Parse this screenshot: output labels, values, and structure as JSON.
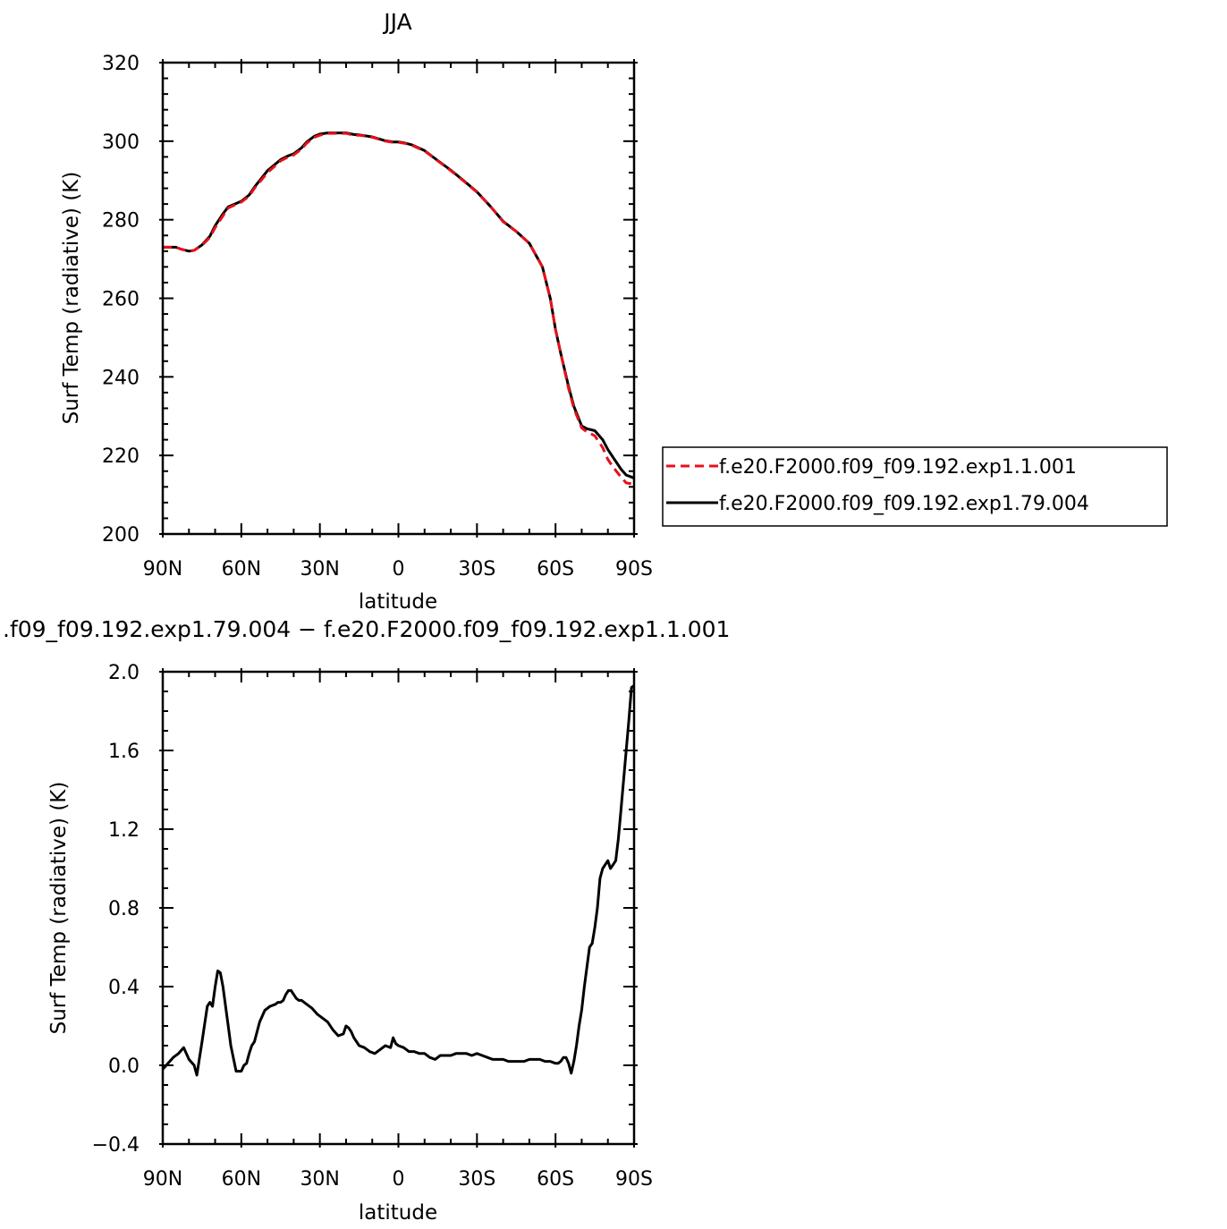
{
  "chart_data": [
    {
      "type": "line",
      "title": "JJA",
      "xlabel": "latitude",
      "ylabel": "Surf Temp (radiative) (K)",
      "xlim": [
        90,
        -90
      ],
      "ylim": [
        200,
        320
      ],
      "xticks": [
        90,
        60,
        30,
        0,
        -30,
        -60,
        -90
      ],
      "xtick_labels": [
        "90N",
        "60N",
        "30N",
        "0",
        "30S",
        "60S",
        "90S"
      ],
      "yticks": [
        200,
        220,
        240,
        260,
        280,
        300,
        320
      ],
      "ytick_labels": [
        "200",
        "220",
        "240",
        "260",
        "280",
        "300",
        "320"
      ],
      "grid": false,
      "legend_position": "right",
      "series": [
        {
          "name": "f.e20.F2000.f09_f09.192.exp1.1.001",
          "color": "#e8101a",
          "dash": "dashed",
          "x": [
            90,
            85,
            83,
            80,
            78,
            75,
            72,
            70,
            67,
            65,
            60,
            57,
            55,
            50,
            45,
            42,
            40,
            37,
            35,
            32,
            30,
            27,
            25,
            22,
            20,
            17,
            15,
            10,
            5,
            2,
            0,
            -2,
            -5,
            -10,
            -15,
            -20,
            -25,
            -30,
            -35,
            -40,
            -45,
            -50,
            -55,
            -58,
            -60,
            -62,
            -65,
            -67,
            -70,
            -72,
            -75,
            -78,
            -80,
            -82,
            -85,
            -87,
            -89,
            -90
          ],
          "y": [
            273,
            273,
            272.5,
            272,
            272.2,
            273.5,
            275.5,
            278,
            281,
            283,
            284.5,
            286,
            288,
            292,
            295,
            296,
            296.5,
            298,
            299.5,
            301,
            301.5,
            302,
            302,
            302,
            302,
            301.5,
            301.5,
            301,
            300,
            299.7,
            299.7,
            299.5,
            299,
            297.5,
            295,
            292.5,
            289.8,
            287,
            283.5,
            279.5,
            277,
            274,
            268,
            260,
            252,
            246,
            237,
            232,
            227,
            226,
            225,
            222,
            219,
            217,
            214.5,
            213,
            212.8,
            212.5
          ]
        },
        {
          "name": "f.e20.F2000.f09_f09.192.exp1.79.004",
          "color": "#000000",
          "dash": "solid",
          "x": [
            90,
            85,
            83,
            80,
            78,
            75,
            72,
            70,
            67,
            65,
            60,
            57,
            55,
            50,
            45,
            42,
            40,
            37,
            35,
            32,
            30,
            27,
            25,
            22,
            20,
            17,
            15,
            10,
            5,
            2,
            0,
            -2,
            -5,
            -10,
            -15,
            -20,
            -25,
            -30,
            -35,
            -40,
            -45,
            -50,
            -55,
            -58,
            -60,
            -62,
            -65,
            -67,
            -70,
            -72,
            -75,
            -78,
            -80,
            -82,
            -85,
            -87,
            -89,
            -90
          ],
          "y": [
            273,
            273,
            272.5,
            272,
            272.2,
            273.6,
            275.8,
            278.5,
            281.5,
            283.3,
            284.7,
            286.3,
            288.3,
            292.5,
            295.3,
            296.3,
            296.8,
            298.3,
            299.8,
            301.3,
            301.8,
            302.1,
            302.1,
            302.1,
            302.1,
            301.7,
            301.6,
            301.1,
            300.1,
            299.8,
            299.8,
            299.6,
            299.1,
            297.6,
            295.1,
            292.6,
            289.9,
            287.1,
            283.5,
            279.6,
            277,
            274,
            268,
            260,
            252,
            246,
            237.5,
            232.5,
            227.5,
            226.8,
            226.3,
            224,
            221.5,
            219.5,
            216.5,
            215,
            214.5,
            214.2
          ]
        }
      ]
    },
    {
      "type": "line",
      "title": ".f09_f09.192.exp1.79.004 − f.e20.F2000.f09_f09.192.exp1.1.001",
      "xlabel": "latitude",
      "ylabel": "Surf Temp (radiative) (K)",
      "xlim": [
        90,
        -90
      ],
      "ylim": [
        -0.4,
        2.0
      ],
      "xticks": [
        90,
        60,
        30,
        0,
        -30,
        -60,
        -90
      ],
      "xtick_labels": [
        "90N",
        "60N",
        "30N",
        "0",
        "30S",
        "60S",
        "90S"
      ],
      "yticks": [
        -0.4,
        0.0,
        0.4,
        0.8,
        1.2,
        1.6,
        2.0
      ],
      "ytick_labels": [
        "−0.4",
        "0.0",
        "0.4",
        "0.8",
        "1.2",
        "1.6",
        "2.0"
      ],
      "grid": false,
      "series": [
        {
          "color": "#000000",
          "dash": "solid",
          "x": [
            90,
            88,
            86,
            84,
            82,
            80,
            78,
            77,
            75,
            73,
            72,
            71,
            70,
            69,
            68,
            67,
            65,
            64,
            62,
            60,
            59,
            58,
            57,
            56,
            55,
            53,
            51,
            49,
            47,
            46,
            45,
            44,
            43,
            42,
            41,
            40,
            39,
            38,
            37,
            35,
            33,
            31,
            29,
            27,
            25,
            23,
            21,
            20,
            19,
            18,
            17,
            16,
            15,
            13,
            11,
            9,
            7,
            5,
            3,
            2,
            1,
            0,
            -2,
            -4,
            -6,
            -8,
            -10,
            -12,
            -14,
            -16,
            -18,
            -20,
            -22,
            -24,
            -26,
            -28,
            -30,
            -32,
            -34,
            -36,
            -38,
            -40,
            -42,
            -44,
            -46,
            -48,
            -50,
            -52,
            -54,
            -56,
            -58,
            -60,
            -61,
            -62,
            -63,
            -64,
            -65,
            -66,
            -67,
            -68,
            -69,
            -70,
            -71,
            -72,
            -73,
            -74,
            -75,
            -76,
            -77,
            -78,
            -79,
            -80,
            -81,
            -82,
            -83,
            -84,
            -85,
            -86,
            -87,
            -88,
            -89,
            -90
          ],
          "y": [
            -0.02,
            0.01,
            0.04,
            0.06,
            0.09,
            0.03,
            0.0,
            -0.05,
            0.12,
            0.3,
            0.32,
            0.3,
            0.4,
            0.48,
            0.47,
            0.4,
            0.2,
            0.1,
            -0.03,
            -0.03,
            0.0,
            0.01,
            0.06,
            0.1,
            0.12,
            0.22,
            0.28,
            0.3,
            0.31,
            0.32,
            0.32,
            0.33,
            0.36,
            0.38,
            0.38,
            0.36,
            0.34,
            0.33,
            0.33,
            0.31,
            0.29,
            0.26,
            0.24,
            0.22,
            0.18,
            0.15,
            0.16,
            0.2,
            0.19,
            0.17,
            0.14,
            0.12,
            0.1,
            0.09,
            0.07,
            0.06,
            0.08,
            0.1,
            0.09,
            0.14,
            0.11,
            0.1,
            0.09,
            0.07,
            0.07,
            0.06,
            0.06,
            0.04,
            0.03,
            0.05,
            0.05,
            0.05,
            0.06,
            0.06,
            0.06,
            0.05,
            0.06,
            0.05,
            0.04,
            0.03,
            0.03,
            0.03,
            0.02,
            0.02,
            0.02,
            0.02,
            0.03,
            0.03,
            0.03,
            0.02,
            0.02,
            0.01,
            0.01,
            0.02,
            0.04,
            0.04,
            0.01,
            -0.04,
            0.02,
            0.1,
            0.2,
            0.28,
            0.4,
            0.5,
            0.6,
            0.62,
            0.7,
            0.8,
            0.95,
            1.0,
            1.02,
            1.04,
            1.0,
            1.02,
            1.04,
            1.15,
            1.3,
            1.45,
            1.6,
            1.75,
            1.92,
            1.93
          ]
        }
      ]
    }
  ]
}
